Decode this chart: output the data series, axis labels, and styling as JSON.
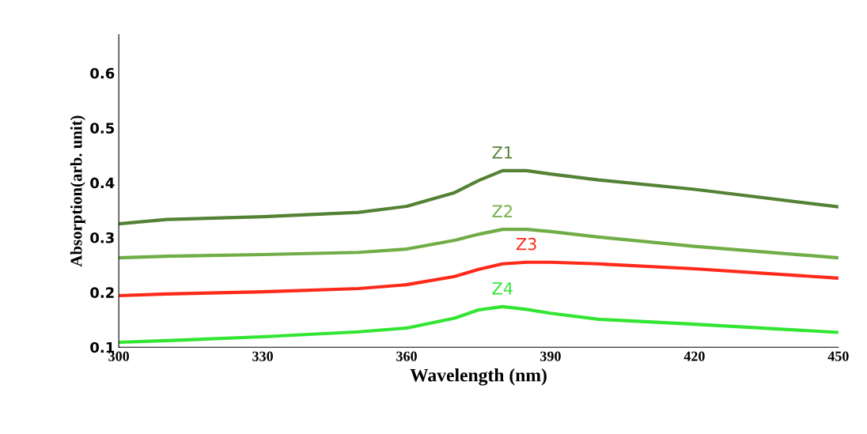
{
  "chart_data": {
    "type": "line",
    "xlabel": "Wavelength (nm)",
    "ylabel": "Absorption(arb. unit)",
    "x": [
      300,
      310,
      330,
      350,
      360,
      370,
      375,
      380,
      385,
      390,
      400,
      420,
      450
    ],
    "series": [
      {
        "name": "Z1",
        "color": "#548235",
        "values": [
          0.325,
          0.333,
          0.338,
          0.346,
          0.357,
          0.382,
          0.404,
          0.422,
          0.422,
          0.416,
          0.405,
          0.388,
          0.356
        ]
      },
      {
        "name": "Z2",
        "color": "#70ad47",
        "values": [
          0.263,
          0.266,
          0.269,
          0.273,
          0.279,
          0.295,
          0.306,
          0.315,
          0.315,
          0.311,
          0.301,
          0.284,
          0.263
        ]
      },
      {
        "name": "Z3",
        "color": "#ff2a1a",
        "values": [
          0.194,
          0.197,
          0.201,
          0.207,
          0.214,
          0.229,
          0.242,
          0.252,
          0.255,
          0.255,
          0.252,
          0.243,
          0.226
        ]
      },
      {
        "name": "Z4",
        "color": "#33e533",
        "values": [
          0.109,
          0.112,
          0.119,
          0.128,
          0.135,
          0.153,
          0.168,
          0.174,
          0.169,
          0.162,
          0.151,
          0.142,
          0.127
        ]
      }
    ],
    "xlim": [
      300,
      450
    ],
    "xticks": [
      300,
      330,
      360,
      390,
      420,
      450
    ],
    "ylim": [
      0.1,
      0.67
    ],
    "yticks": [
      0.1,
      0.2,
      0.3,
      0.4,
      0.5,
      0.6
    ],
    "grid": false,
    "legend": false,
    "marker": "none",
    "line_style": "solid"
  }
}
